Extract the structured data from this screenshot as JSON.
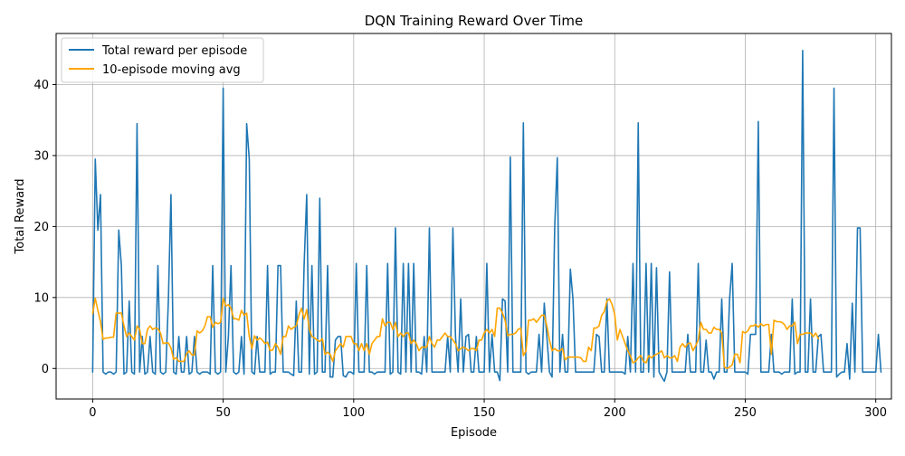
{
  "chart_data": {
    "type": "line",
    "title": "DQN Training Reward Over Time",
    "xlabel": "Episode",
    "ylabel": "Total Reward",
    "xlim": [
      -14,
      306
    ],
    "ylim": [
      -4.3,
      47.2
    ],
    "xticks": [
      0,
      50,
      100,
      150,
      200,
      250,
      300
    ],
    "yticks": [
      0,
      10,
      20,
      30,
      40
    ],
    "grid": true,
    "legend_position": "top-left",
    "series": [
      {
        "name": "Total reward per episode",
        "color": "#1f77b4",
        "y": [
          -0.5,
          29.5,
          19.5,
          24.5,
          -0.5,
          -0.8,
          -0.5,
          -0.5,
          -0.8,
          -0.5,
          19.5,
          14.5,
          -0.8,
          -0.5,
          9.5,
          -0.5,
          -0.8,
          34.5,
          -0.5,
          4.5,
          -0.8,
          -0.5,
          4.5,
          -0.5,
          -0.8,
          14.5,
          -0.5,
          -0.8,
          -0.5,
          9.5,
          24.5,
          -0.5,
          -0.8,
          4.5,
          -0.5,
          -0.5,
          4.5,
          -0.8,
          -0.5,
          4.5,
          -0.5,
          -0.8,
          -0.5,
          -0.5,
          -0.5,
          -0.8,
          14.5,
          -0.5,
          -0.8,
          -0.5,
          39.5,
          -0.5,
          4.5,
          14.5,
          -0.5,
          -0.8,
          -0.5,
          4.5,
          -0.8,
          34.5,
          29.5,
          -0.5,
          -0.8,
          4.5,
          -0.5,
          -0.5,
          -0.5,
          14.5,
          -0.8,
          -0.5,
          -0.5,
          14.5,
          14.5,
          -0.5,
          -0.5,
          -0.5,
          -0.8,
          -1.0,
          9.5,
          -0.5,
          -0.5,
          14.5,
          24.5,
          -0.8,
          14.5,
          -0.8,
          -0.5,
          24.0,
          -0.5,
          -0.5,
          14.5,
          -1.2,
          -1.2,
          4.0,
          4.5,
          4.5,
          -1.0,
          -1.2,
          -0.5,
          -0.5,
          -0.8,
          14.8,
          -0.5,
          -0.5,
          -0.5,
          14.5,
          -0.5,
          -0.5,
          -0.8,
          -0.5,
          -0.5,
          -0.5,
          -0.5,
          14.8,
          -0.8,
          -0.5,
          19.8,
          -0.5,
          -0.8,
          14.8,
          -0.5,
          14.8,
          -0.5,
          14.8,
          -0.5,
          -0.5,
          -0.8,
          4.5,
          -0.5,
          19.8,
          -0.5,
          -0.5,
          -0.5,
          -0.5,
          -0.5,
          -0.5,
          4.5,
          -0.5,
          19.8,
          4.5,
          -0.5,
          9.8,
          -0.5,
          4.5,
          4.8,
          -0.5,
          -0.5,
          4.5,
          -0.5,
          -0.5,
          -0.5,
          14.8,
          -0.5,
          4.8,
          -0.5,
          -0.5,
          -1.7,
          9.8,
          9.5,
          -0.5,
          29.8,
          -0.5,
          -0.5,
          -0.5,
          -0.5,
          34.6,
          -0.5,
          -0.8,
          -0.5,
          -0.5,
          -0.5,
          4.8,
          -0.5,
          9.2,
          4.5,
          -0.5,
          -1.2,
          19.8,
          29.7,
          -0.5,
          4.8,
          -0.5,
          -0.5,
          14.0,
          9.8,
          -0.5,
          -0.5,
          -0.5,
          -0.5,
          -0.5,
          -0.5,
          -0.5,
          -0.5,
          4.8,
          4.5,
          -0.5,
          -0.5,
          9.8,
          -0.5,
          -0.5,
          -0.5,
          -0.5,
          -0.5,
          -0.5,
          -0.8,
          4.5,
          -0.5,
          14.8,
          -0.5,
          34.6,
          -0.5,
          -0.5,
          14.8,
          -0.5,
          14.8,
          -1.2,
          14.2,
          -0.5,
          -1.2,
          -1.8,
          -0.5,
          13.6,
          -0.5,
          -0.5,
          -0.5,
          -0.5,
          -0.5,
          -0.5,
          4.8,
          -0.5,
          -0.5,
          -0.5,
          14.8,
          -0.5,
          -0.5,
          4.0,
          -0.5,
          -0.5,
          -1.5,
          -0.5,
          -0.5,
          9.8,
          -0.5,
          -0.5,
          9.8,
          14.8,
          -0.5,
          -0.5,
          -0.5,
          -0.5,
          -0.5,
          -0.8,
          4.8,
          4.8,
          4.8,
          34.8,
          -0.5,
          -0.5,
          -0.5,
          -0.5,
          4.8,
          -0.5,
          -0.5,
          -0.5,
          -0.8,
          -0.5,
          -0.5,
          -0.5,
          9.8,
          -0.8,
          -0.5,
          -0.5,
          44.8,
          -0.5,
          -0.5,
          9.8,
          -0.5,
          -0.5,
          4.5,
          4.8,
          -0.5,
          -0.5,
          -0.5,
          -0.5,
          39.5,
          -1.2,
          -0.8,
          -0.5,
          -0.5,
          3.5,
          -1.5,
          9.2,
          -0.5,
          19.8,
          19.8,
          -0.5,
          -0.5,
          -0.5,
          -0.5,
          -0.5,
          -0.5,
          4.8,
          -0.5
        ]
      },
      {
        "name": "10-episode moving avg",
        "color": "#ffa500",
        "y": [
          7.7,
          9.9,
          8.2,
          6.6,
          4.1,
          4.3,
          4.3,
          4.4,
          4.4,
          7.8,
          7.8,
          7.8,
          6.0,
          4.5,
          5.0,
          4.5,
          4.0,
          6.0,
          5.5,
          3.5,
          3.5,
          5.5,
          6.0,
          5.5,
          5.7,
          5.6,
          5.0,
          3.5,
          3.6,
          3.6,
          2.9,
          1.3,
          1.5,
          1.0,
          1.0,
          1.0,
          2.1,
          2.5,
          1.9,
          1.9,
          5.3,
          5.0,
          5.3,
          6.0,
          7.3,
          7.3,
          5.8,
          6.5,
          6.3,
          6.5,
          9.9,
          8.8,
          9.0,
          8.5,
          7.0,
          7.0,
          6.8,
          8.2,
          7.5,
          7.8,
          4.5,
          2.8,
          4.6,
          4.0,
          4.3,
          4.0,
          3.5,
          3.7,
          2.5,
          2.6,
          3.5,
          3.0,
          2.0,
          4.5,
          4.5,
          6.0,
          5.5,
          5.8,
          6.0,
          7.5,
          8.5,
          7.0,
          8.3,
          5.5,
          4.5,
          4.3,
          4.0,
          3.8,
          4.2,
          2.0,
          2.3,
          2.0,
          1.0,
          2.5,
          3.0,
          3.5,
          3.0,
          4.5,
          4.5,
          4.5,
          3.5,
          3.5,
          2.5,
          3.5,
          2.5,
          3.5,
          2.0,
          3.5,
          4.0,
          4.5,
          4.5,
          7.0,
          6.0,
          6.5,
          6.5,
          5.5,
          6.5,
          4.5,
          5.0,
          4.5,
          5.0,
          5.0,
          3.5,
          4.0,
          3.5,
          2.5,
          3.0,
          3.0,
          3.0,
          4.5,
          3.5,
          3.0,
          4.0,
          4.0,
          4.5,
          5.0,
          4.5,
          4.5,
          4.0,
          3.5,
          2.5,
          2.8,
          3.0,
          2.8,
          2.5,
          2.8,
          2.8,
          2.5,
          4.0,
          4.0,
          5.0,
          5.5,
          5.0,
          5.5,
          4.5,
          8.5,
          8.5,
          7.8,
          6.8,
          4.6,
          4.8,
          4.8,
          5.0,
          5.5,
          5.7,
          1.8,
          2.5,
          6.8,
          6.8,
          7.0,
          6.5,
          7.0,
          7.5,
          7.5,
          6.0,
          4.0,
          2.5,
          2.8,
          2.5,
          2.5,
          2.8,
          1.2,
          1.6,
          1.6,
          1.6,
          1.6,
          1.6,
          1.5,
          1.0,
          1.0,
          3.0,
          2.5,
          5.7,
          5.7,
          6.0,
          7.5,
          8.0,
          9.5,
          9.8,
          9.0,
          7.6,
          4.0,
          5.5,
          4.5,
          3.5,
          2.5,
          1.8,
          0.8,
          1.0,
          1.5,
          1.8,
          1.0,
          0.8,
          1.8,
          1.5,
          1.8,
          2.0,
          2.2,
          2.5,
          1.5,
          1.8,
          1.5,
          1.5,
          1.8,
          1.0,
          3.0,
          3.5,
          3.0,
          3.5,
          3.6,
          2.5,
          3.2,
          4.0,
          6.5,
          5.5,
          5.5,
          5.0,
          5.0,
          5.8,
          5.5,
          5.5,
          5.0,
          0.2,
          0.0,
          0.2,
          0.5,
          2.0,
          2.0,
          0.8,
          5.2,
          5.0,
          5.3,
          6.0,
          6.0,
          6.2,
          5.8,
          6.3,
          6.0,
          6.2,
          6.2,
          2.0,
          6.8,
          6.6,
          6.6,
          6.5,
          6.2,
          5.5,
          6.0,
          6.0,
          6.5,
          3.5,
          4.8,
          4.8,
          5.0,
          5.0,
          5.0,
          4.5,
          5.0,
          4.2
        ]
      }
    ]
  }
}
